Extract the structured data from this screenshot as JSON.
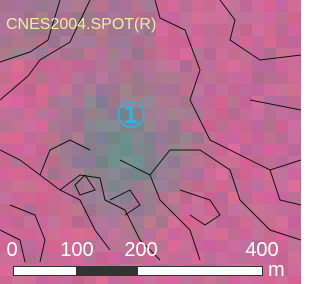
{
  "map": {
    "credit": "CNES2004.SPOT(R)",
    "marker": "①",
    "scale_bar": {
      "labels": [
        "0",
        "100",
        "200",
        "400"
      ],
      "unit": "m"
    }
  }
}
